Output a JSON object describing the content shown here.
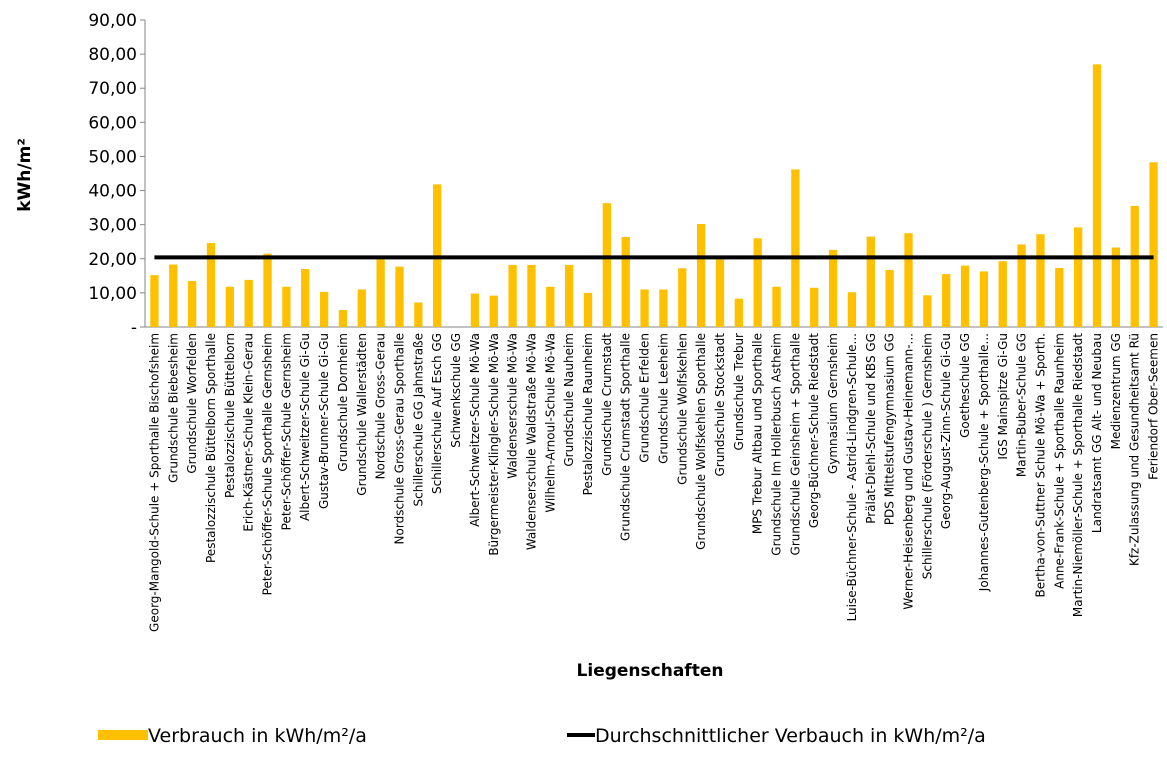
{
  "chart_data": {
    "type": "bar",
    "y_label": "kWh/m²",
    "x_label": "Liegenschaften",
    "categories": [
      "Georg-Mangold-Schule + Sporthalle Bischofsheim",
      "Grundschule Biebesheim",
      "Grundschule Worfelden",
      "Pestalozzischule Büttelborn Sporthalle",
      "Pestalozzischule Büttelborn",
      "Erich-Kästner-Schule Klein-Gerau",
      "Peter-Schöffer-Schule Sporthalle Gernsheim",
      "Peter-Schöffer-Schule Gernsheim",
      "Albert-Schweitzer-Schule Gi-Gu",
      "Gustav-Brunner-Schule Gi-Gu",
      "Grundschule Dornheim",
      "Grundschule Wallerstädten",
      "Nordschule Gross-Gerau",
      "Nordschule Gross-Gerau Sporthalle",
      "Schillerschule GG Jahnstraße",
      "Schillerschule Auf Esch GG",
      "Schwenkschule GG",
      "Albert-Schweitzer-Schule Mö-Wa",
      "Bürgermeister-Klingler-Schule Mö-Wa",
      "Waldenserschule Mö-Wa",
      "Waldenserschule Waldstraße Mö-Wa",
      "Wilhelm-Arnoul-Schule Mö-Wa",
      "Grundschule Nauheim",
      "Pestalozzischule Raunheim",
      "Grundschule Crumstadt",
      "Grundschule Crumstadt Sporthalle",
      "Grundschule Erfelden",
      "Grundschule Leeheim",
      "Grundschule Wolfskehlen",
      "Grundschule Wolfskehlen Sporthalle",
      "Grundschule Stockstadt",
      "Grundschule Trebur",
      "MPS Trebur Altbau und Sporthalle",
      "Grundschule Im Hollerbusch Astheim",
      "Grundschule Geinsheim + Sporthalle",
      "Georg-Büchner-Schule Riedstadt",
      "Gymnasium Gernsheim",
      "Luise-Büchner-Schule - Astrid-Lindgren-Schule...",
      "Prälat-Diehl-Schule und KBS GG",
      "PDS Mittelstufengymnasium GG",
      "Werner-Heisenberg und Gustav-Heinemann-...",
      "Schillerschule (Förderschule ) Gernsheim",
      "Georg-August-Zinn-Schule Gi-Gu",
      "Goetheschule GG",
      "Johannes-Gutenberg-Schule + Sporthalle...",
      "IGS Mainspitze Gi-Gu",
      "Martin-Buber-Schule GG",
      "Bertha-von-Suttner Schule Mö-Wa + Sporth.",
      "Anne-Frank-Schule + Sporthalle Raunheim",
      "Martin-Niemöller-Schule + Sporthalle Riedstadt",
      "Landratsamt GG Alt- und Neubau",
      "Medienzentrum GG",
      "Kfz-Zulassung und Gesundheitsamt Rü",
      "Feriendorf Ober-Seemen"
    ],
    "series": [
      {
        "name": "Verbrauch in kWh/m²/a",
        "type": "bar",
        "color": "#ffc000",
        "values": [
          15.2,
          18.3,
          13.5,
          24.6,
          11.8,
          13.8,
          21.5,
          11.8,
          17.0,
          10.3,
          5.0,
          11.0,
          19.8,
          17.7,
          7.2,
          41.8,
          0,
          9.8,
          9.2,
          18.2,
          18.2,
          11.8,
          18.2,
          10.0,
          36.3,
          26.4,
          11.0,
          11.0,
          17.2,
          30.2,
          19.8,
          8.3,
          26.0,
          11.8,
          46.2,
          11.5,
          22.6,
          10.2,
          26.5,
          16.7,
          27.5,
          9.3,
          15.5,
          18.0,
          16.3,
          19.3,
          24.2,
          27.2,
          17.3,
          29.2,
          77.0,
          23.3,
          35.5,
          48.3
        ]
      },
      {
        "name": "Durchschnittlicher Verbauch in kWh/m²/a",
        "type": "line",
        "color": "#000000",
        "values": [
          20.4,
          20.4,
          20.4,
          20.4,
          20.4,
          20.4,
          20.4,
          20.4,
          20.4,
          20.4,
          20.4,
          20.4,
          20.4,
          20.4,
          20.4,
          20.4,
          20.4,
          20.4,
          20.4,
          20.4,
          20.4,
          20.4,
          20.4,
          20.4,
          20.4,
          20.4,
          20.4,
          20.4,
          20.4,
          20.4,
          20.4,
          20.4,
          20.4,
          20.4,
          20.4,
          20.4,
          20.4,
          20.4,
          20.4,
          20.4,
          20.4,
          20.4,
          20.4,
          20.4,
          20.4,
          20.4,
          20.4,
          20.4,
          20.4,
          20.4,
          20.4,
          20.4,
          20.4,
          20.4
        ]
      }
    ],
    "ylim": [
      0,
      90
    ],
    "yticks": [
      {
        "value": 0,
        "label": "-"
      },
      {
        "value": 10,
        "label": "10,00"
      },
      {
        "value": 20,
        "label": "20,00"
      },
      {
        "value": 30,
        "label": "30,00"
      },
      {
        "value": 40,
        "label": "40,00"
      },
      {
        "value": 50,
        "label": "50,00"
      },
      {
        "value": 60,
        "label": "60,00"
      },
      {
        "value": 70,
        "label": "70,00"
      },
      {
        "value": 80,
        "label": "80,00"
      },
      {
        "value": 90,
        "label": "90,00"
      }
    ],
    "legend": "bottom"
  }
}
